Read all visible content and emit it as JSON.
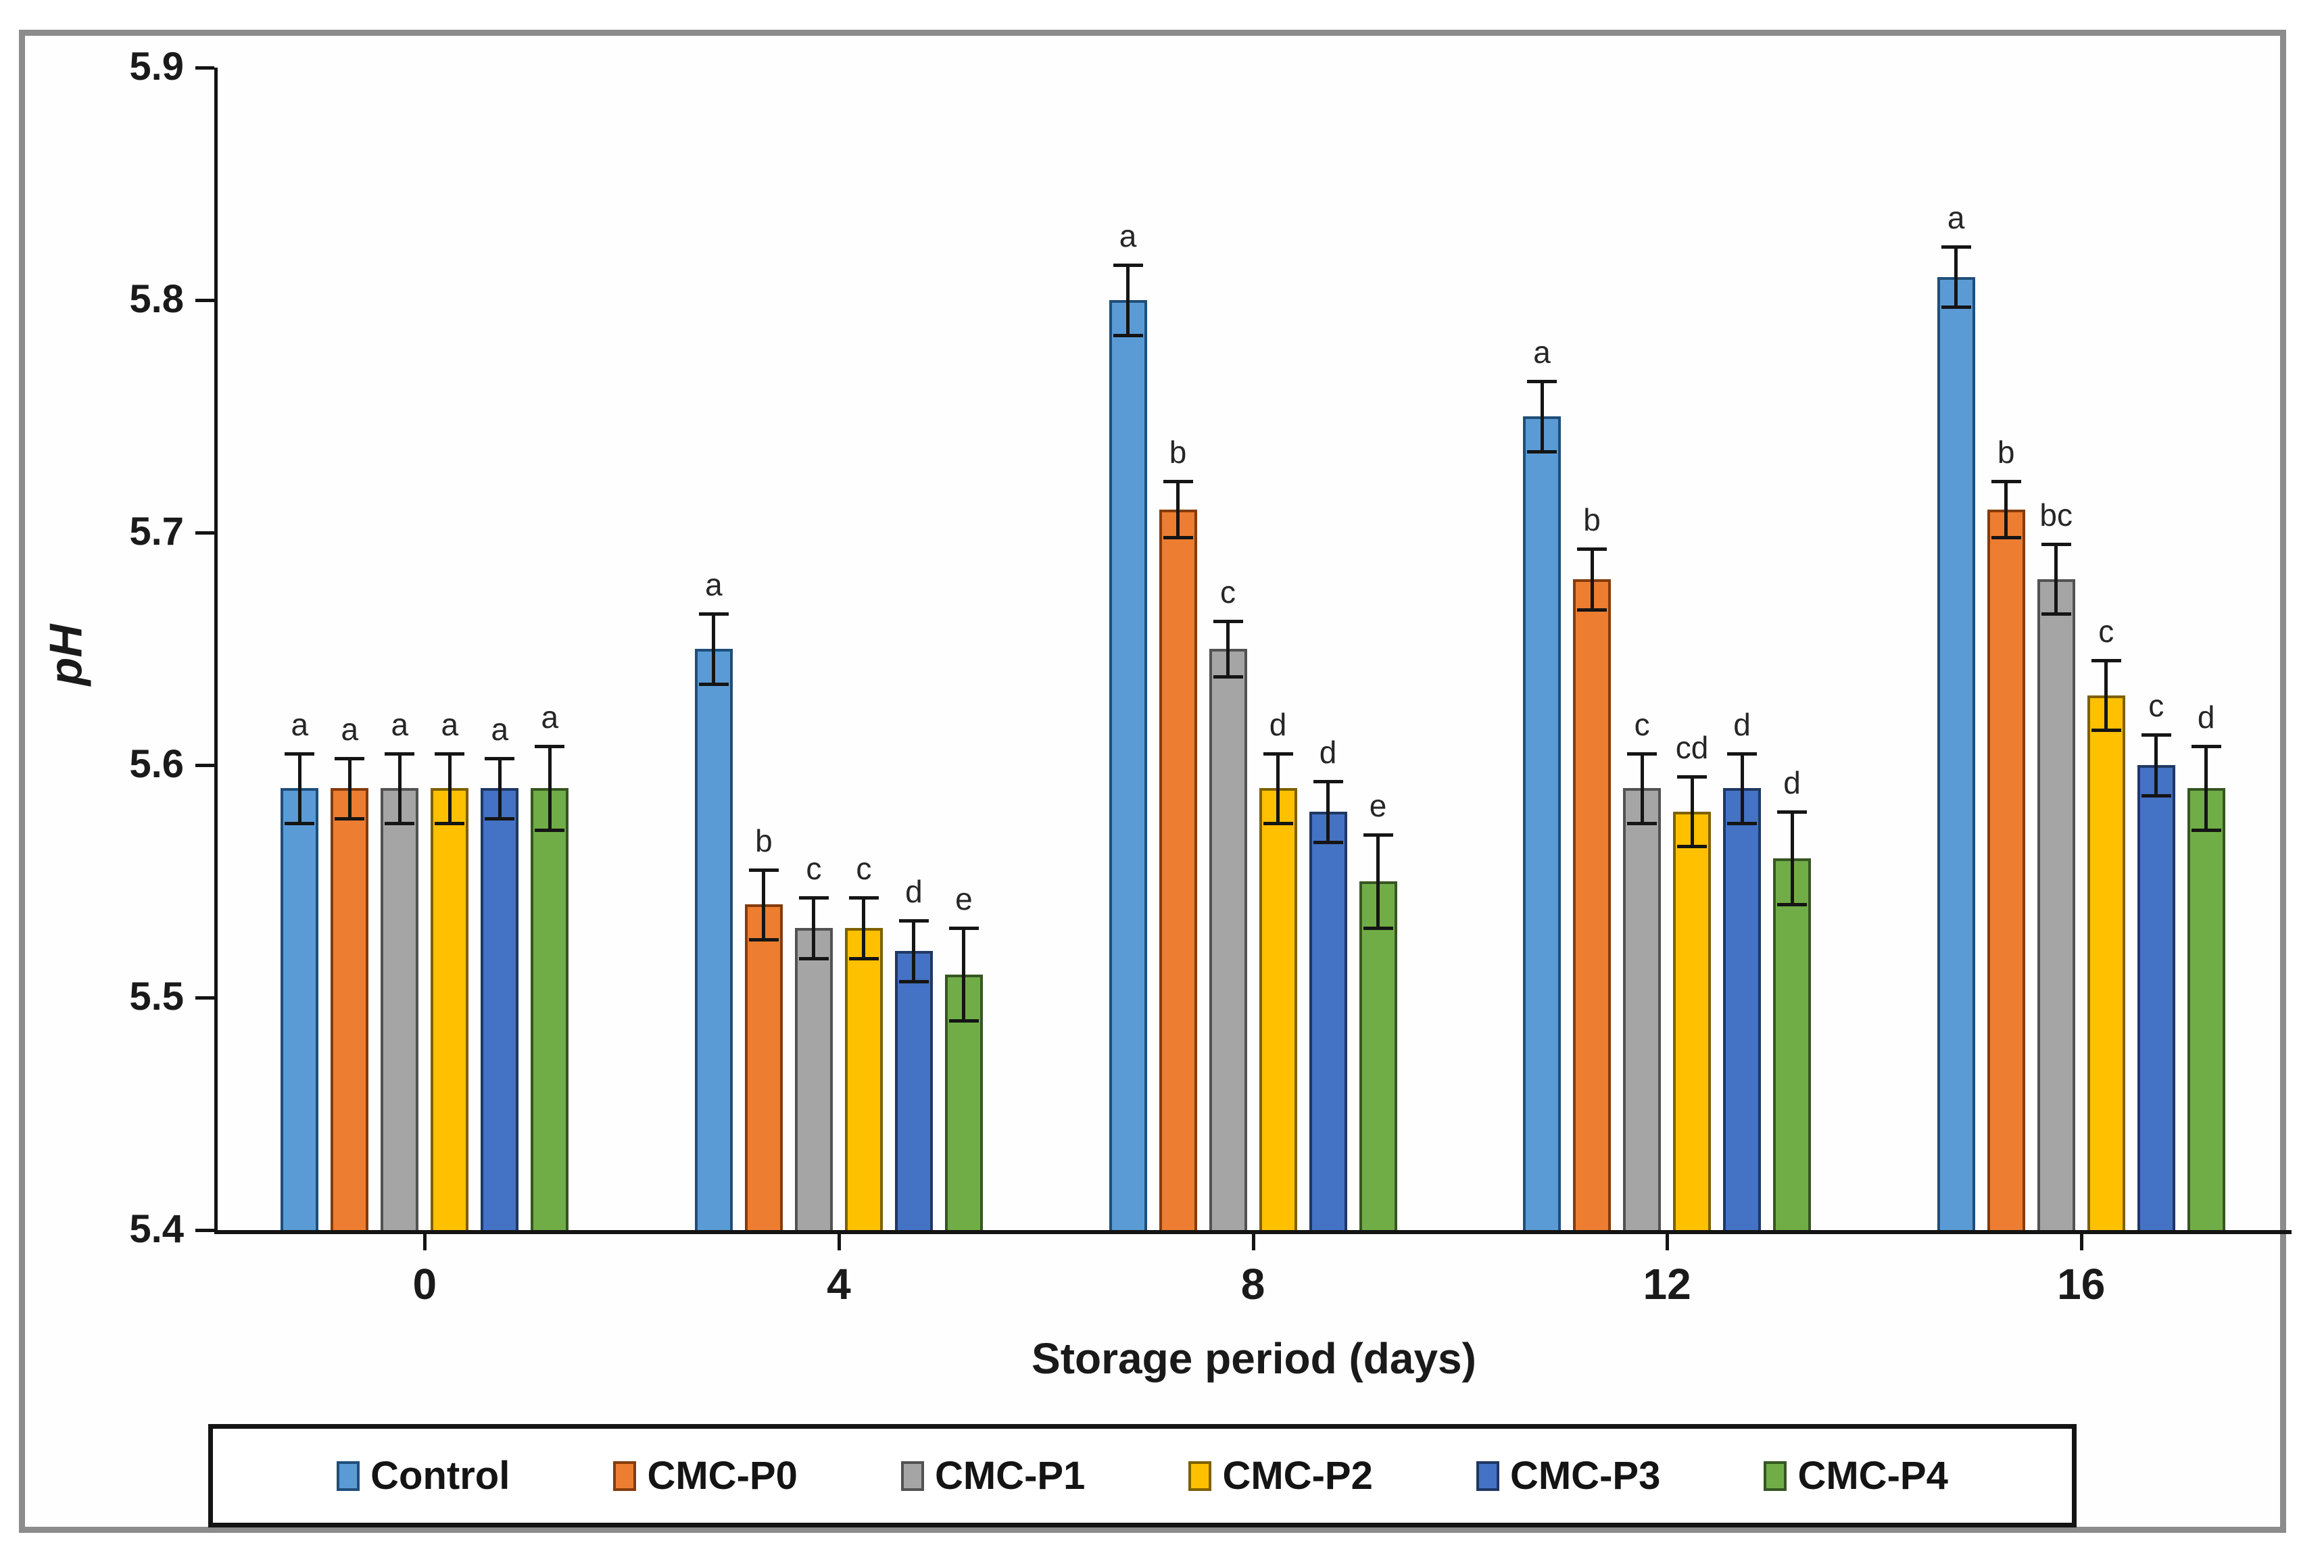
{
  "figure": {
    "y_axis_title": "pH",
    "x_axis_title": "Storage period (days)",
    "y_tick_labels": [
      "5.9",
      "5.8",
      "5.7",
      "5.6",
      "5.5",
      "5.4"
    ],
    "x_tick_labels": [
      "0",
      "4",
      "8",
      "12",
      "16"
    ],
    "frame_color": "#8c8c8c",
    "axis_color": "#141414"
  },
  "chart_data": {
    "type": "bar",
    "title": "",
    "xlabel": "Storage period (days)",
    "ylabel": "pH",
    "ylim": [
      5.4,
      5.9
    ],
    "ytick_step": 0.1,
    "grid": false,
    "legend_position": "bottom",
    "error_bars": true,
    "categories": [
      "0",
      "4",
      "8",
      "12",
      "16"
    ],
    "series": [
      {
        "name": "Control",
        "color": "#5B9BD5",
        "border": "#1F4E79",
        "values": [
          5.59,
          5.65,
          5.8,
          5.75,
          5.81
        ],
        "errors": [
          0.015,
          0.015,
          0.015,
          0.015,
          0.013
        ],
        "letters": [
          "a",
          "a",
          "a",
          "a",
          "a"
        ]
      },
      {
        "name": "CMC-P0",
        "color": "#ED7D31",
        "border": "#843C0C",
        "values": [
          5.59,
          5.54,
          5.71,
          5.68,
          5.71
        ],
        "errors": [
          0.013,
          0.015,
          0.012,
          0.013,
          0.012
        ],
        "letters": [
          "a",
          "b",
          "b",
          "b",
          "b"
        ]
      },
      {
        "name": "CMC-P1",
        "color": "#A5A5A5",
        "border": "#525252",
        "values": [
          5.59,
          5.53,
          5.65,
          5.59,
          5.68
        ],
        "errors": [
          0.015,
          0.013,
          0.012,
          0.015,
          0.015
        ],
        "letters": [
          "a",
          "c",
          "c",
          "c",
          "bc"
        ]
      },
      {
        "name": "CMC-P2",
        "color": "#FFC000",
        "border": "#7F6000",
        "values": [
          5.59,
          5.53,
          5.59,
          5.58,
          5.63
        ],
        "errors": [
          0.015,
          0.013,
          0.015,
          0.015,
          0.015
        ],
        "letters": [
          "a",
          "c",
          "d",
          "cd",
          "c"
        ]
      },
      {
        "name": "CMC-P3",
        "color": "#4472C4",
        "border": "#1F3864",
        "values": [
          5.59,
          5.52,
          5.58,
          5.59,
          5.6
        ],
        "errors": [
          0.013,
          0.013,
          0.013,
          0.015,
          0.013
        ],
        "letters": [
          "a",
          "d",
          "d",
          "d",
          "c"
        ]
      },
      {
        "name": "CMC-P4",
        "color": "#70AD47",
        "border": "#375623",
        "values": [
          5.59,
          5.51,
          5.55,
          5.56,
          5.59
        ],
        "errors": [
          0.018,
          0.02,
          0.02,
          0.02,
          0.018
        ],
        "letters": [
          "a",
          "e",
          "e",
          "d",
          "d"
        ]
      }
    ]
  }
}
